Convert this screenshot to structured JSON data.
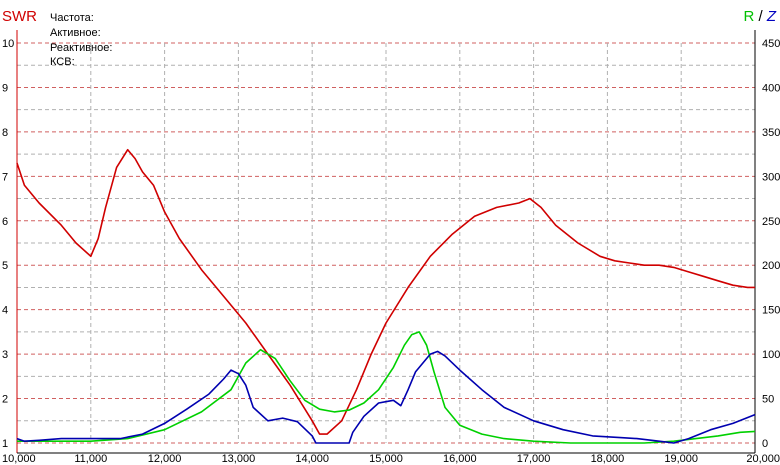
{
  "header": {
    "swr_label": "SWR",
    "r_label": "R",
    "slash": "/",
    "z_label": "Z"
  },
  "info_lines": [
    "Частота:",
    "Активное:",
    "Реактивное:",
    "КСВ:"
  ],
  "chart_data": {
    "type": "line",
    "x_ticks": [
      "10,000",
      "11,000",
      "12,000",
      "13,000",
      "14,000",
      "15,000",
      "16,000",
      "17,000",
      "18,000",
      "19,000",
      "20,000"
    ],
    "y_left_ticks": [
      "1",
      "2",
      "3",
      "4",
      "5",
      "6",
      "7",
      "8",
      "9",
      "10"
    ],
    "y_right_ticks": [
      "0",
      "50",
      "100",
      "150",
      "200",
      "250",
      "300",
      "350",
      "400",
      "450"
    ],
    "xlim": [
      10000,
      20000
    ],
    "ylim_left": [
      1,
      10
    ],
    "ylim_right": [
      0,
      450
    ],
    "grid": true,
    "colors": {
      "swr": "#d00000",
      "r": "#00d000",
      "z": "#0000b0",
      "grid_major": "#d06060",
      "grid_minor": "#b0b0b0"
    },
    "series": [
      {
        "name": "SWR",
        "axis": "left",
        "color": "#d00000",
        "x": [
          10000,
          10100,
          10300,
          10600,
          10800,
          11000,
          11100,
          11200,
          11350,
          11500,
          11600,
          11700,
          11850,
          12000,
          12200,
          12500,
          12800,
          13100,
          13400,
          13700,
          14000,
          14100,
          14200,
          14400,
          14600,
          14800,
          15000,
          15300,
          15600,
          15900,
          16200,
          16500,
          16800,
          16950,
          17100,
          17300,
          17600,
          17900,
          18100,
          18300,
          18500,
          18700,
          18900,
          19100,
          19300,
          19500,
          19700,
          19900,
          20000
        ],
        "y": [
          7.3,
          6.8,
          6.4,
          5.9,
          5.5,
          5.2,
          5.6,
          6.3,
          7.2,
          7.6,
          7.4,
          7.1,
          6.8,
          6.2,
          5.6,
          4.9,
          4.3,
          3.7,
          3.0,
          2.3,
          1.5,
          1.2,
          1.2,
          1.5,
          2.2,
          3.0,
          3.7,
          4.5,
          5.2,
          5.7,
          6.1,
          6.3,
          6.4,
          6.5,
          6.3,
          5.9,
          5.5,
          5.2,
          5.1,
          5.05,
          5.0,
          5.0,
          4.95,
          4.85,
          4.75,
          4.65,
          4.55,
          4.5,
          4.5
        ]
      },
      {
        "name": "R",
        "axis": "right",
        "color": "#00d000",
        "x": [
          10000,
          10500,
          11000,
          11500,
          12000,
          12500,
          12900,
          13100,
          13300,
          13500,
          13700,
          13900,
          14100,
          14300,
          14500,
          14700,
          14900,
          15100,
          15250,
          15350,
          15450,
          15550,
          15650,
          15800,
          16000,
          16300,
          16600,
          17000,
          17500,
          18000,
          18500,
          18900,
          19200,
          19500,
          19800,
          20000
        ],
        "y": [
          2,
          2,
          2,
          5,
          15,
          35,
          60,
          90,
          105,
          95,
          70,
          48,
          38,
          35,
          37,
          45,
          60,
          85,
          110,
          122,
          125,
          110,
          80,
          40,
          20,
          10,
          5,
          2,
          0,
          0,
          0,
          2,
          5,
          8,
          12,
          13
        ]
      },
      {
        "name": "Z",
        "axis": "right",
        "color": "#0000b0",
        "x": [
          10000,
          10100,
          10300,
          10600,
          11000,
          11400,
          11700,
          12000,
          12300,
          12600,
          12800,
          12900,
          13000,
          13100,
          13200,
          13400,
          13600,
          13800,
          14000,
          14050,
          14500,
          14550,
          14700,
          14900,
          15100,
          15200,
          15300,
          15400,
          15500,
          15600,
          15700,
          15800,
          16000,
          16300,
          16600,
          17000,
          17400,
          17800,
          18200,
          18400,
          18600,
          18800,
          18900,
          19100,
          19400,
          19700,
          20000
        ],
        "y": [
          5,
          2,
          3,
          5,
          5,
          5,
          10,
          22,
          38,
          55,
          72,
          82,
          78,
          65,
          40,
          25,
          28,
          24,
          8,
          0,
          0,
          12,
          30,
          45,
          48,
          42,
          60,
          80,
          90,
          100,
          103,
          98,
          82,
          60,
          40,
          25,
          15,
          8,
          6,
          5,
          3,
          1,
          0,
          5,
          15,
          22,
          32
        ]
      }
    ]
  }
}
